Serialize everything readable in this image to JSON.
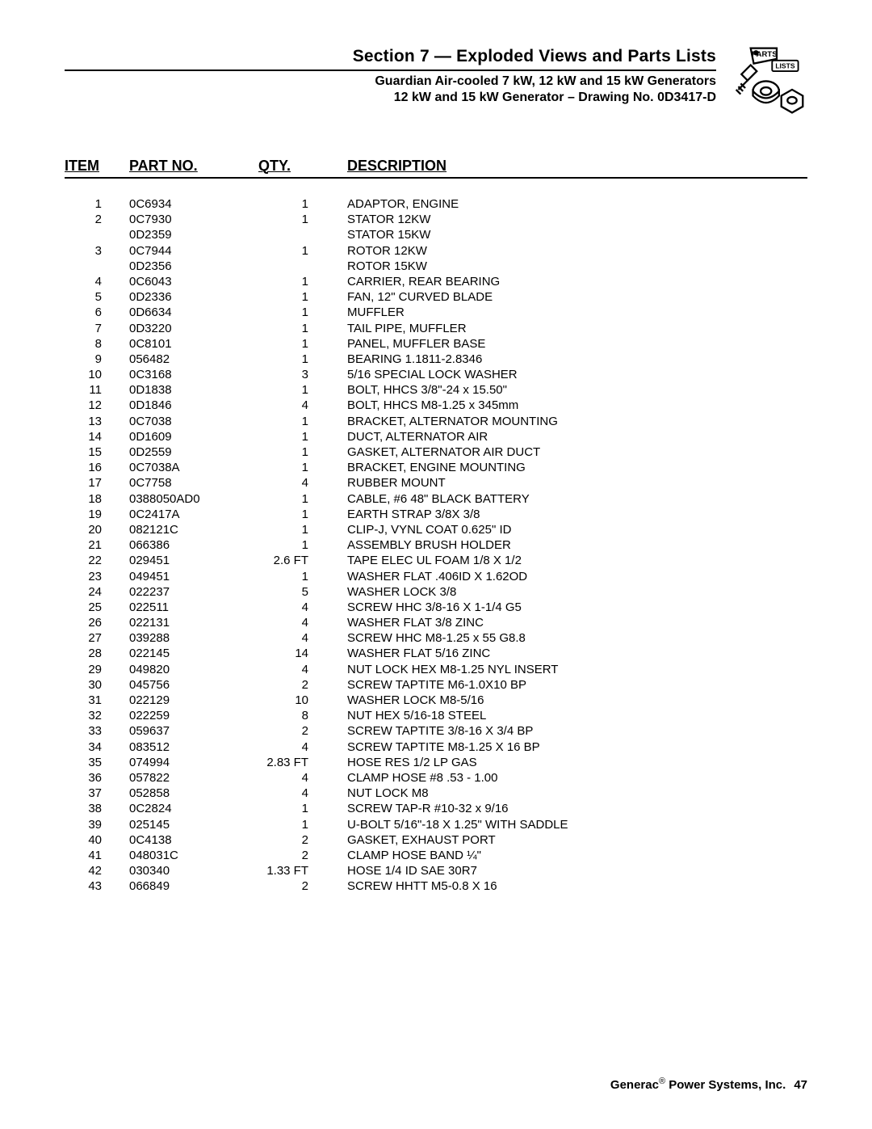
{
  "header": {
    "section_title": "Section 7 — Exploded Views and Parts Lists",
    "subtitle_1": "Guardian Air-cooled 7 kW, 12 kW and 15 kW Generators",
    "subtitle_2": "12 kW and 15 kW Generator – Drawing No. 0D3417-D",
    "icon_label_top": "PARTS",
    "icon_label_bottom": "LISTS"
  },
  "table": {
    "columns": {
      "item": "ITEM",
      "part": "PART NO.",
      "qty": "QTY.",
      "desc": "DESCRIPTION"
    },
    "rows": [
      {
        "item": "1",
        "part": "0C6934",
        "qty": "1",
        "desc": "ADAPTOR, ENGINE"
      },
      {
        "item": "2",
        "part": "0C7930",
        "qty": "1",
        "desc": "STATOR 12KW"
      },
      {
        "item": "",
        "part": "0D2359",
        "qty": "",
        "desc": "STATOR 15KW"
      },
      {
        "item": "3",
        "part": "0C7944",
        "qty": "1",
        "desc": "ROTOR 12KW"
      },
      {
        "item": "",
        "part": "0D2356",
        "qty": "",
        "desc": "ROTOR 15KW"
      },
      {
        "item": "4",
        "part": "0C6043",
        "qty": "1",
        "desc": "CARRIER, REAR BEARING"
      },
      {
        "item": "5",
        "part": "0D2336",
        "qty": "1",
        "desc": "FAN, 12\" CURVED BLADE"
      },
      {
        "item": "6",
        "part": "0D6634",
        "qty": "1",
        "desc": "MUFFLER"
      },
      {
        "item": "7",
        "part": "0D3220",
        "qty": "1",
        "desc": "TAIL PIPE, MUFFLER"
      },
      {
        "item": "8",
        "part": "0C8101",
        "qty": "1",
        "desc": "PANEL, MUFFLER BASE"
      },
      {
        "item": "9",
        "part": "056482",
        "qty": "1",
        "desc": "BEARING 1.1811-2.8346"
      },
      {
        "item": "10",
        "part": "0C3168",
        "qty": "3",
        "desc": "5/16 SPECIAL LOCK WASHER"
      },
      {
        "item": "11",
        "part": "0D1838",
        "qty": "1",
        "desc": "BOLT, HHCS 3/8\"-24 x 15.50\""
      },
      {
        "item": "12",
        "part": "0D1846",
        "qty": "4",
        "desc": "BOLT, HHCS M8-1.25 x 345mm"
      },
      {
        "item": "13",
        "part": "0C7038",
        "qty": "1",
        "desc": "BRACKET, ALTERNATOR MOUNTING"
      },
      {
        "item": "14",
        "part": "0D1609",
        "qty": "1",
        "desc": "DUCT, ALTERNATOR AIR"
      },
      {
        "item": "15",
        "part": "0D2559",
        "qty": "1",
        "desc": "GASKET, ALTERNATOR AIR DUCT"
      },
      {
        "item": "16",
        "part": "0C7038A",
        "qty": "1",
        "desc": "BRACKET, ENGINE MOUNTING"
      },
      {
        "item": "17",
        "part": "0C7758",
        "qty": "4",
        "desc": "RUBBER MOUNT"
      },
      {
        "item": "18",
        "part": "0388050AD0",
        "qty": "1",
        "desc": "CABLE, #6 48\" BLACK BATTERY"
      },
      {
        "item": "19",
        "part": "0C2417A",
        "qty": "1",
        "desc": "EARTH STRAP 3/8X 3/8"
      },
      {
        "item": "20",
        "part": "082121C",
        "qty": "1",
        "desc": "CLIP-J, VYNL COAT 0.625\" ID"
      },
      {
        "item": "21",
        "part": "066386",
        "qty": "1",
        "desc": "ASSEMBLY  BRUSH HOLDER"
      },
      {
        "item": "22",
        "part": "029451",
        "qty": "2.6 FT",
        "desc": "TAPE ELEC UL FOAM 1/8 X 1/2"
      },
      {
        "item": "23",
        "part": "049451",
        "qty": "1",
        "desc": "WASHER FLAT .406ID X 1.62OD"
      },
      {
        "item": "24",
        "part": "022237",
        "qty": "5",
        "desc": "WASHER LOCK 3/8"
      },
      {
        "item": "25",
        "part": "022511",
        "qty": "4",
        "desc": "SCREW HHC 3/8-16 X 1-1/4 G5"
      },
      {
        "item": "26",
        "part": "022131",
        "qty": "4",
        "desc": "WASHER FLAT 3/8 ZINC"
      },
      {
        "item": "27",
        "part": "039288",
        "qty": "4",
        "desc": "SCREW HHC M8-1.25 x 55 G8.8"
      },
      {
        "item": "28",
        "part": "022145",
        "qty": "14",
        "desc": "WASHER FLAT 5/16 ZINC"
      },
      {
        "item": "29",
        "part": "049820",
        "qty": "4",
        "desc": "NUT LOCK HEX M8-1.25 NYL INSERT"
      },
      {
        "item": "30",
        "part": "045756",
        "qty": "2",
        "desc": "SCREW TAPTITE M6-1.0X10 BP"
      },
      {
        "item": "31",
        "part": "022129",
        "qty": "10",
        "desc": "WASHER LOCK M8-5/16"
      },
      {
        "item": "32",
        "part": "022259",
        "qty": "8",
        "desc": "NUT HEX 5/16-18 STEEL"
      },
      {
        "item": "33",
        "part": "059637",
        "qty": "2",
        "desc": "SCREW TAPTITE 3/8-16 X 3/4 BP"
      },
      {
        "item": "34",
        "part": "083512",
        "qty": "4",
        "desc": "SCREW TAPTITE M8-1.25 X 16 BP"
      },
      {
        "item": "35",
        "part": "074994",
        "qty": "2.83 FT",
        "desc": "HOSE RES 1/2 LP GAS"
      },
      {
        "item": "36",
        "part": "057822",
        "qty": "4",
        "desc": "CLAMP HOSE #8 .53 - 1.00"
      },
      {
        "item": "37",
        "part": "052858",
        "qty": "4",
        "desc": "NUT LOCK M8"
      },
      {
        "item": "38",
        "part": "0C2824",
        "qty": "1",
        "desc": "SCREW TAP-R #10-32 x 9/16"
      },
      {
        "item": "39",
        "part": "025145",
        "qty": "1",
        "desc": "U-BOLT 5/16\"-18 X 1.25\" WITH SADDLE"
      },
      {
        "item": "40",
        "part": "0C4138",
        "qty": "2",
        "desc": "GASKET, EXHAUST PORT"
      },
      {
        "item": "41",
        "part": "048031C",
        "qty": "2",
        "desc": "CLAMP HOSE BAND ¼\""
      },
      {
        "item": "42",
        "part": "030340",
        "qty": "1.33 FT",
        "desc": "HOSE 1/4 ID SAE 30R7"
      },
      {
        "item": "43",
        "part": "066849",
        "qty": "2",
        "desc": "SCREW HHTT M5-0.8 X 16"
      }
    ]
  },
  "footer": {
    "company": "Generac",
    "reg": "®",
    "tail": " Power Systems, Inc.",
    "page": "47"
  }
}
